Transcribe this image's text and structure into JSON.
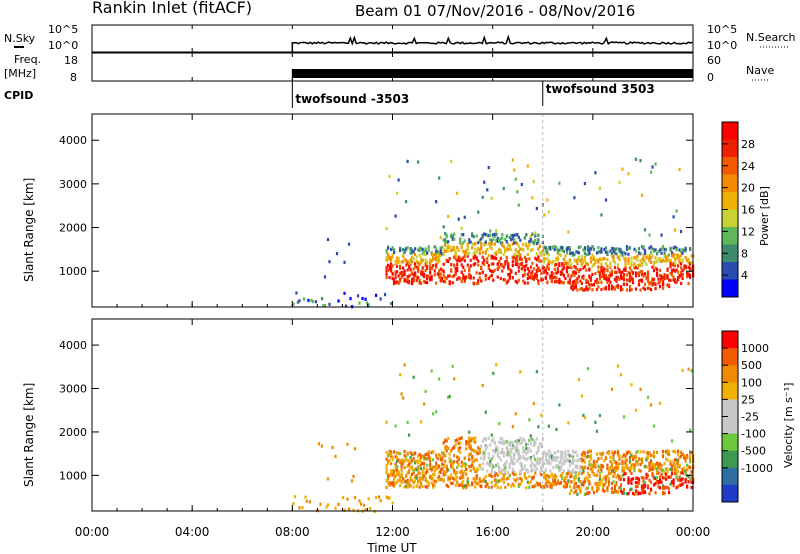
{
  "header": {
    "title": "Rankin Inlet (fitACF)",
    "beam": "Beam 01",
    "date_range": "07/Nov/2016 - 08/Nov/2016"
  },
  "colors": {
    "power_scale": [
      "#0000ff",
      "#2a4bb0",
      "#3f8a6a",
      "#5eb85a",
      "#c8d232",
      "#f0b000",
      "#f28a00",
      "#f25a00",
      "#ee2000",
      "#ff0000"
    ],
    "velocity_scale": [
      "#1e3cc8",
      "#2e6ea0",
      "#3d9a50",
      "#6cc83c",
      "#c8c8c8",
      "#c8c8c8",
      "#f0b000",
      "#f08a00",
      "#f05a00",
      "#ff0000"
    ]
  },
  "chart_data": [
    {
      "type": "line",
      "panel": "sky-search",
      "left_label": "N.Sky",
      "right_label": "N.Search",
      "left_ticks": [
        "10^5",
        "10^0"
      ],
      "right_ticks": [
        "10^5",
        "10^0"
      ],
      "x_start_hour": 8,
      "x_end_hour": 24
    },
    {
      "type": "line",
      "panel": "freq-nave",
      "left_label": "Freq.",
      "left_unit": "[MHz]",
      "right_label": "Nave",
      "left_ticks": [
        18,
        8
      ],
      "right_ticks": [
        60,
        0
      ],
      "x_start_hour": 8,
      "x_end_hour": 24
    },
    {
      "type": "table",
      "panel": "cpid",
      "label": "CPID",
      "segments": [
        {
          "start_hour": 8,
          "name": "twofsound -3503"
        },
        {
          "start_hour": 18,
          "name": "twofsound 3503"
        }
      ]
    },
    {
      "type": "heatmap",
      "panel": "power",
      "ylabel": "Slant Range [km]",
      "colorbar_label": "Power [dB]",
      "y_ticks": [
        1000,
        2000,
        3000,
        4000
      ],
      "ylim": [
        180,
        4600
      ],
      "colorbar_ticks": [
        4,
        8,
        12,
        16,
        20,
        24,
        28
      ],
      "cmin": 0,
      "cmax": 32
    },
    {
      "type": "heatmap",
      "panel": "velocity",
      "ylabel": "Slant Range [km]",
      "colorbar_label": "Velocity [m s⁻¹]",
      "y_ticks": [
        1000,
        2000,
        3000,
        4000
      ],
      "ylim": [
        180,
        4600
      ],
      "colorbar_ticks": [
        "1000",
        "500",
        "100",
        "25",
        "-25",
        "-100",
        "-500",
        "-1000"
      ]
    },
    {
      "type": "table",
      "panel": "time-axis",
      "xlabel": "Time UT",
      "x_ticks": [
        "00:00",
        "04:00",
        "08:00",
        "12:00",
        "16:00",
        "20:00",
        "00:00"
      ],
      "x_tick_hours": [
        0,
        4,
        8,
        12,
        16,
        20,
        24
      ]
    }
  ]
}
